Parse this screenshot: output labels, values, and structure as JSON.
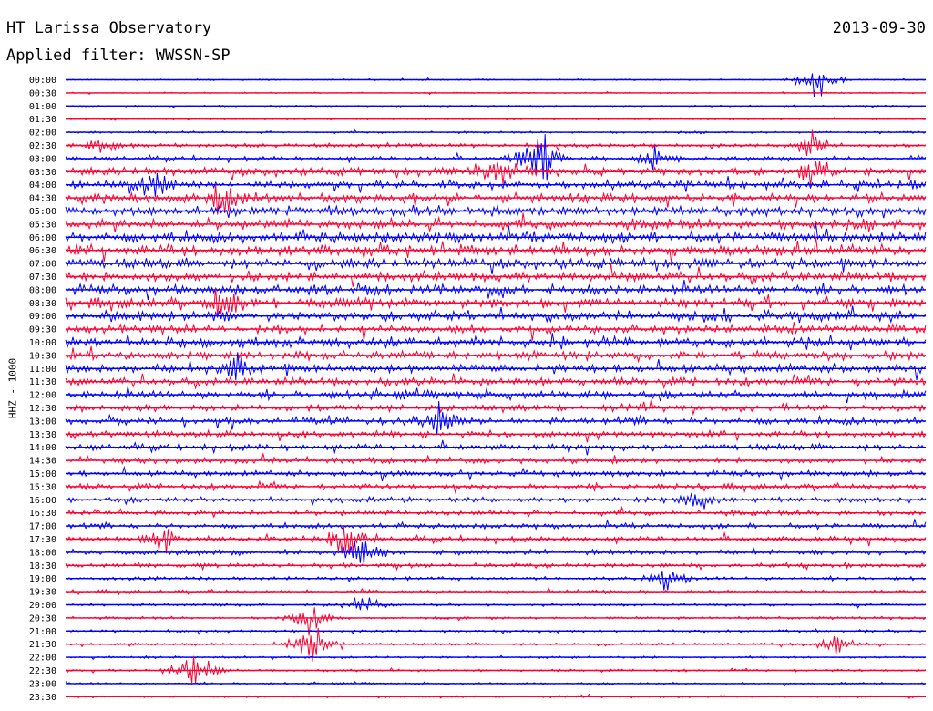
{
  "header": {
    "title": "HT Larissa Observatory",
    "date": "2013-09-30",
    "filter_label": "Applied filter: WWSSN-SP"
  },
  "colors": {
    "even_trace": "#0000ff",
    "odd_trace": "#ff0033",
    "background": "#ffffff"
  },
  "chart_data": {
    "type": "line",
    "title": "HT Larissa Observatory",
    "subtitle": "Applied filter: WWSSN-SP",
    "ylabel": "HHZ - 1000",
    "xlabel": "",
    "grid": false,
    "legend": "none",
    "row_labels": [
      "00:00",
      "00:30",
      "01:00",
      "01:30",
      "02:00",
      "02:30",
      "03:00",
      "03:30",
      "04:00",
      "04:30",
      "05:00",
      "05:30",
      "06:00",
      "06:30",
      "07:00",
      "07:30",
      "08:00",
      "08:30",
      "09:00",
      "09:30",
      "10:00",
      "10:30",
      "11:00",
      "11:30",
      "12:00",
      "12:30",
      "13:00",
      "13:30",
      "14:00",
      "14:30",
      "15:00",
      "15:30",
      "16:00",
      "16:30",
      "17:00",
      "17:30",
      "18:00",
      "18:30",
      "19:00",
      "19:30",
      "20:00",
      "20:30",
      "21:00",
      "21:30",
      "22:00",
      "22:30",
      "23:00",
      "23:30"
    ],
    "row_minutes": 30,
    "relative_noise_level": [
      0.08,
      0.07,
      0.08,
      0.09,
      0.12,
      0.22,
      0.25,
      0.45,
      0.45,
      0.5,
      0.55,
      0.6,
      0.6,
      0.6,
      0.55,
      0.55,
      0.55,
      0.55,
      0.55,
      0.5,
      0.55,
      0.5,
      0.5,
      0.45,
      0.45,
      0.4,
      0.4,
      0.35,
      0.35,
      0.33,
      0.33,
      0.32,
      0.3,
      0.3,
      0.28,
      0.3,
      0.3,
      0.25,
      0.2,
      0.2,
      0.16,
      0.15,
      0.14,
      0.14,
      0.13,
      0.13,
      0.12,
      0.12
    ],
    "events": [
      {
        "row": 5,
        "minute": 1.2,
        "amplitude": 1.2
      },
      {
        "row": 6,
        "minute": 16.5,
        "amplitude": 3.5
      },
      {
        "row": 6,
        "minute": 20.5,
        "amplitude": 1.3
      },
      {
        "row": 7,
        "minute": 15.2,
        "amplitude": 1.6
      },
      {
        "row": 5,
        "minute": 26.0,
        "amplitude": 1.4
      },
      {
        "row": 7,
        "minute": 26.0,
        "amplitude": 1.6
      },
      {
        "row": 0,
        "minute": 26.2,
        "amplitude": 2.2
      },
      {
        "row": 8,
        "minute": 3.0,
        "amplitude": 1.6
      },
      {
        "row": 9,
        "minute": 5.5,
        "amplitude": 1.8
      },
      {
        "row": 17,
        "minute": 5.5,
        "amplitude": 1.8
      },
      {
        "row": 22,
        "minute": 6.0,
        "amplitude": 1.4
      },
      {
        "row": 26,
        "minute": 13.0,
        "amplitude": 1.5
      },
      {
        "row": 35,
        "minute": 3.5,
        "amplitude": 1.3
      },
      {
        "row": 35,
        "minute": 9.8,
        "amplitude": 2.5
      },
      {
        "row": 36,
        "minute": 10.3,
        "amplitude": 1.8
      },
      {
        "row": 41,
        "minute": 8.5,
        "amplitude": 1.6
      },
      {
        "row": 43,
        "minute": 8.7,
        "amplitude": 3.0
      },
      {
        "row": 45,
        "minute": 4.5,
        "amplitude": 2.6
      },
      {
        "row": 38,
        "minute": 21.0,
        "amplitude": 1.5
      },
      {
        "row": 32,
        "minute": 22.0,
        "amplitude": 1.3
      },
      {
        "row": 40,
        "minute": 10.3,
        "amplitude": 1.4
      },
      {
        "row": 43,
        "minute": 26.8,
        "amplitude": 1.3
      }
    ]
  }
}
